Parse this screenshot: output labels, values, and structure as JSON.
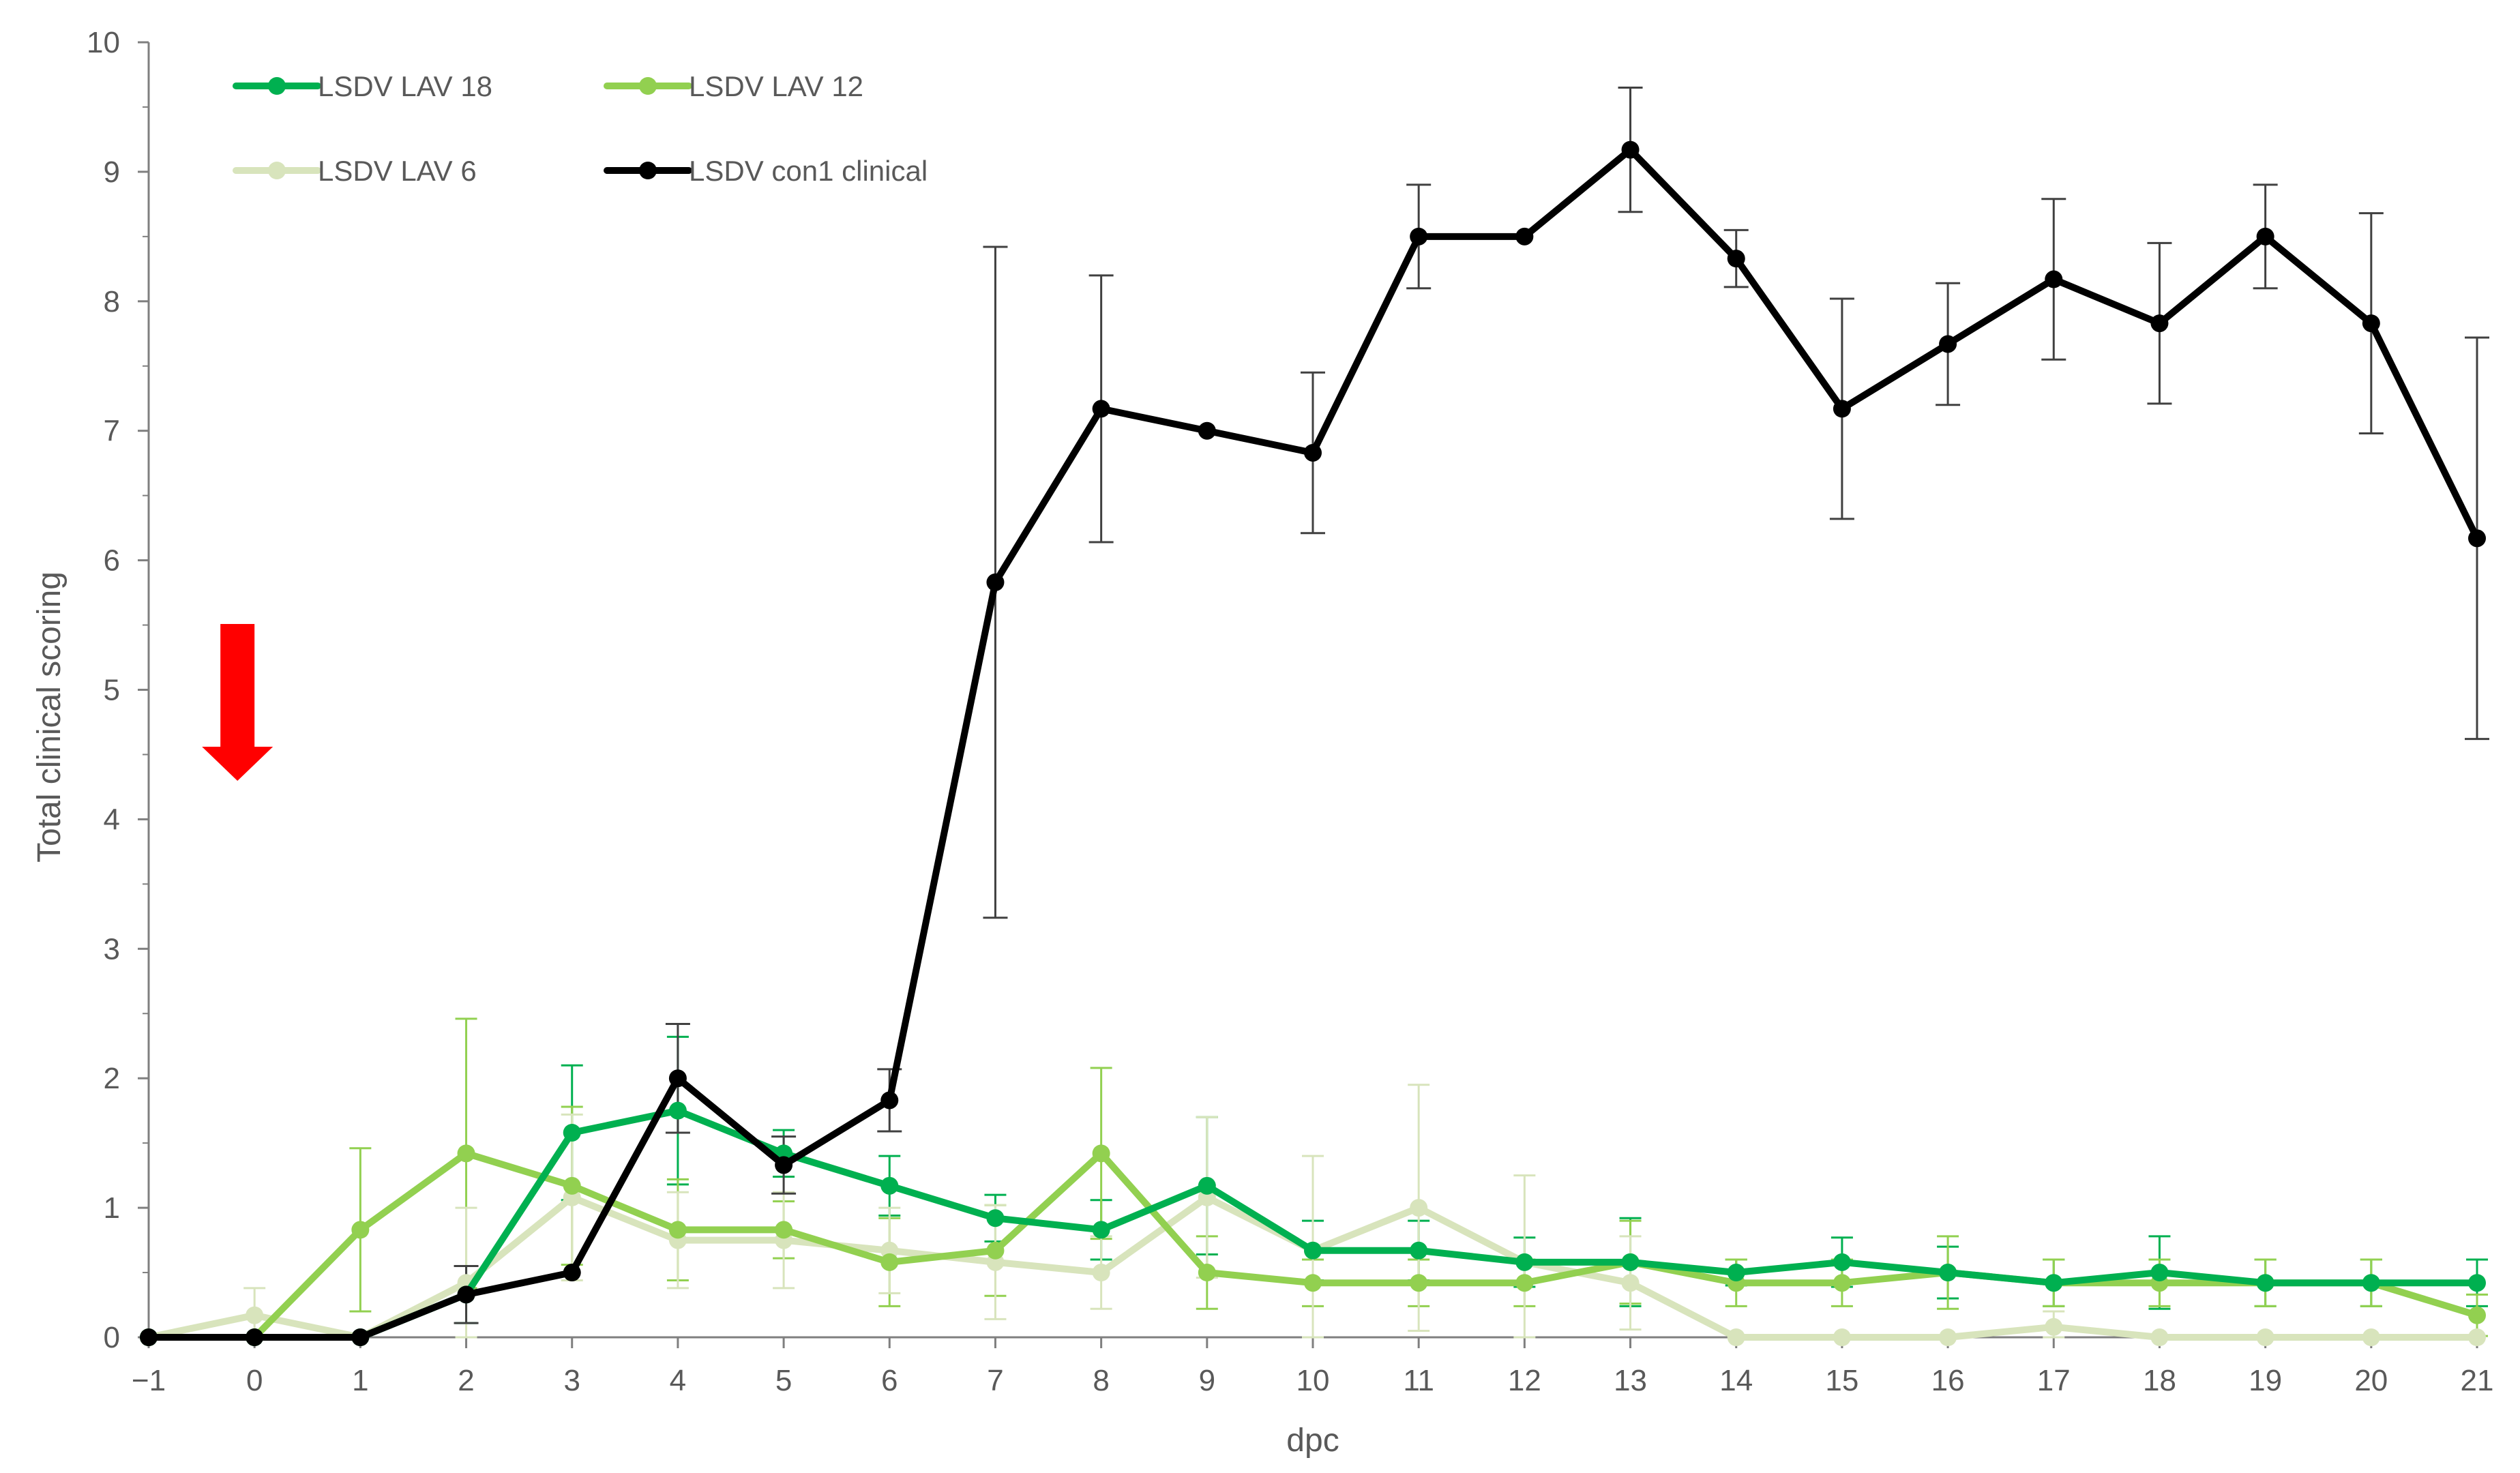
{
  "chart_data": {
    "type": "line",
    "title": "",
    "xlabel": "dpc",
    "ylabel": "Total clinical scoring",
    "x": [
      -1,
      0,
      1,
      2,
      3,
      4,
      5,
      6,
      7,
      8,
      9,
      10,
      11,
      12,
      13,
      14,
      15,
      16,
      17,
      18,
      19,
      20,
      21
    ],
    "x_tick_labels": [
      "−1",
      "0",
      "1",
      "2",
      "3",
      "4",
      "5",
      "6",
      "7",
      "8",
      "9",
      "10",
      "11",
      "12",
      "13",
      "14",
      "15",
      "16",
      "17",
      "18",
      "19",
      "20",
      "21"
    ],
    "xlim": [
      -1,
      21
    ],
    "ylim": [
      0,
      10
    ],
    "y_ticks": [
      0,
      1,
      2,
      3,
      4,
      5,
      6,
      7,
      8,
      9,
      10
    ],
    "y_tick_labels": [
      "0",
      "1",
      "2",
      "3",
      "4",
      "5",
      "6",
      "7",
      "8",
      "9",
      "10"
    ],
    "grid": false,
    "legend_placement": "top-left",
    "series": [
      {
        "name": "LSDV LAV 18",
        "color": "#00b050",
        "values": [
          0,
          0,
          0,
          0.33,
          1.58,
          1.75,
          1.42,
          1.17,
          0.92,
          0.83,
          1.17,
          0.67,
          0.67,
          0.58,
          0.58,
          0.5,
          0.58,
          0.5,
          0.42,
          0.5,
          0.42,
          0.42,
          0.42
        ],
        "err_high": [
          0,
          0,
          0,
          0.55,
          2.1,
          2.32,
          1.6,
          1.4,
          1.1,
          1.06,
          1.7,
          0.9,
          0.9,
          0.77,
          0.92,
          0.6,
          0.77,
          0.7,
          0.6,
          0.78,
          0.6,
          0.6,
          0.6
        ],
        "err_low": [
          0,
          0,
          0,
          0.11,
          1.06,
          1.18,
          1.24,
          0.94,
          0.74,
          0.6,
          0.64,
          0.44,
          0.44,
          0.39,
          0.24,
          0.4,
          0.39,
          0.3,
          0.24,
          0.22,
          0.24,
          0.24,
          0.24
        ]
      },
      {
        "name": "LSDV LAV 12",
        "color": "#92d050",
        "values": [
          0,
          0,
          0.83,
          1.42,
          1.17,
          0.83,
          0.83,
          0.58,
          0.67,
          1.42,
          0.5,
          0.42,
          0.42,
          0.42,
          0.58,
          0.42,
          0.42,
          0.5,
          0.42,
          0.42,
          0.42,
          0.42,
          0.17
        ],
        "err_high": [
          0,
          0,
          1.46,
          2.46,
          1.78,
          1.22,
          1.05,
          0.92,
          1.02,
          2.08,
          0.78,
          0.6,
          0.6,
          0.6,
          0.9,
          0.6,
          0.6,
          0.78,
          0.6,
          0.6,
          0.6,
          0.6,
          0.33
        ],
        "err_low": [
          0,
          0,
          0.2,
          0.38,
          0.56,
          0.44,
          0.61,
          0.24,
          0.32,
          0.76,
          0.22,
          0.24,
          0.24,
          0.24,
          0.26,
          0.24,
          0.24,
          0.22,
          0.24,
          0.24,
          0.24,
          0.24,
          0.01
        ]
      },
      {
        "name": "LSDV LAV 6",
        "color": "#d8e4bc",
        "values": [
          0,
          0.17,
          0,
          0.42,
          1.08,
          0.75,
          0.75,
          0.67,
          0.58,
          0.5,
          1.08,
          0.67,
          1.0,
          0.58,
          0.42,
          0,
          0,
          0,
          0.08,
          0,
          0,
          0,
          0
        ],
        "err_high": [
          0,
          0.38,
          0,
          1.0,
          1.72,
          1.12,
          1.12,
          1.0,
          1.02,
          0.78,
          1.7,
          1.4,
          1.95,
          1.25,
          0.78,
          0,
          0,
          0,
          0.2,
          0,
          0,
          0,
          0
        ],
        "err_low": [
          0,
          0,
          0,
          0,
          0.44,
          0.38,
          0.38,
          0.34,
          0.14,
          0.22,
          0.46,
          0,
          0.05,
          0,
          0.06,
          0,
          0,
          0,
          0,
          0,
          0,
          0,
          0
        ]
      },
      {
        "name": "LSDV con1 clinical",
        "color": "#000000",
        "values": [
          0,
          0,
          0,
          0.33,
          0.5,
          2.0,
          1.33,
          1.83,
          5.83,
          7.17,
          7.0,
          6.83,
          8.5,
          8.5,
          9.17,
          8.33,
          7.17,
          7.67,
          8.17,
          7.83,
          8.5,
          7.83,
          6.17
        ],
        "err_high": [
          0,
          0,
          0,
          0.55,
          0.5,
          2.42,
          1.55,
          2.07,
          8.42,
          8.2,
          7.0,
          7.45,
          8.9,
          8.5,
          9.65,
          8.55,
          8.02,
          8.14,
          8.79,
          8.45,
          8.9,
          8.68,
          7.72
        ],
        "err_low": [
          0,
          0,
          0,
          0.11,
          0.5,
          1.58,
          1.11,
          1.59,
          3.24,
          6.14,
          7.0,
          6.21,
          8.1,
          8.5,
          8.69,
          8.11,
          6.32,
          7.2,
          7.55,
          7.21,
          8.1,
          6.98,
          4.62
        ]
      }
    ],
    "annotation": {
      "type": "arrow",
      "direction": "down",
      "color": "#ff0000",
      "x": 0
    }
  }
}
